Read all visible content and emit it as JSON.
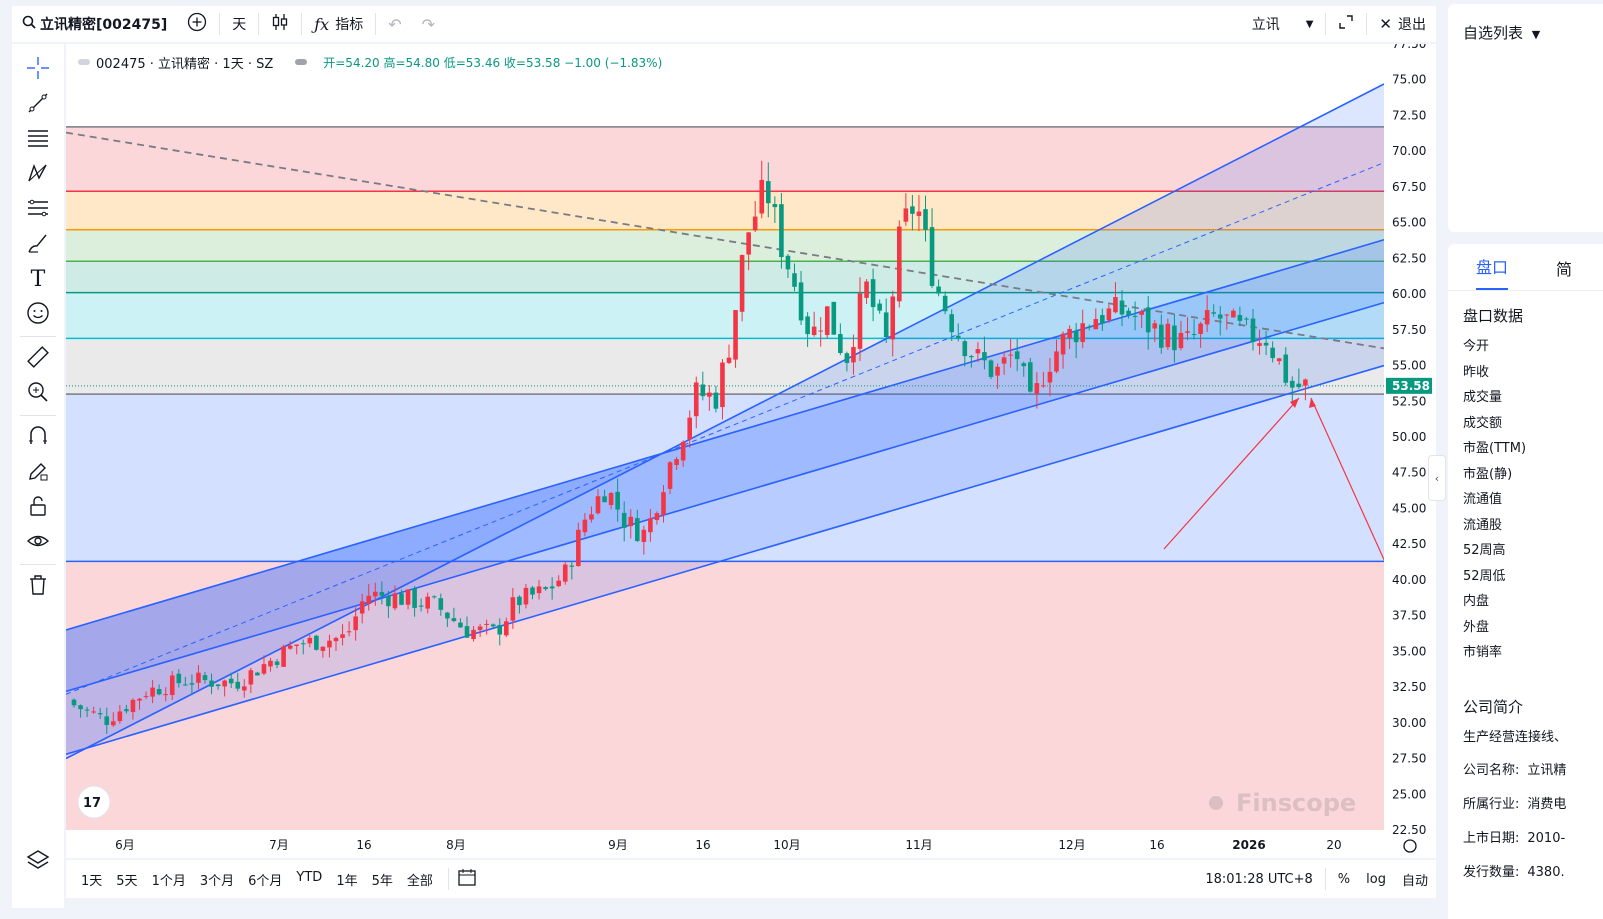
{
  "toolbar": {
    "symbol": "立讯精密[002475]",
    "interval": "天",
    "indicators": "指标",
    "watch_name": "立讯",
    "exit": "退出"
  },
  "legend": {
    "title": "002475 · 立讯精密 · 1天 · SZ",
    "ohlc": "开=54.20 高=54.80 低=53.46 收=53.58 −1.00 (−1.83%)"
  },
  "chart": {
    "watermark": "Finscope",
    "price_tag": "53.58",
    "y_ticks": [
      "77.50",
      "75.00",
      "72.50",
      "70.00",
      "67.50",
      "65.00",
      "62.50",
      "60.00",
      "57.50",
      "55.00",
      "52.50",
      "50.00",
      "47.50",
      "45.00",
      "42.50",
      "40.00",
      "37.50",
      "35.00",
      "32.50",
      "30.00",
      "27.50",
      "25.00",
      "22.50"
    ],
    "x_ticks": [
      "6月",
      "7月",
      "16",
      "8月",
      "9月",
      "16",
      "10月",
      "11月",
      "12月",
      "16",
      "2026",
      "20"
    ],
    "colors": {
      "up": "#f23645",
      "down": "#089981",
      "channel": "#2962ff"
    }
  },
  "chart_data": {
    "type": "candlestick",
    "ylim": [
      22.5,
      77.5
    ],
    "last_close": 53.58,
    "horizontal_levels": [
      71.7,
      67.2,
      64.5,
      62.3,
      60.1,
      56.9,
      53.0,
      41.3
    ],
    "channel_lines": [
      {
        "start": 27.5,
        "end": 74.7
      },
      {
        "start": 36.5,
        "end": 63.8
      },
      {
        "start": 32.2,
        "end": 59.4
      },
      {
        "start": 27.8,
        "end": 55.0
      }
    ]
  },
  "bottom": {
    "ranges": [
      "1天",
      "5天",
      "1个月",
      "3个月",
      "6个月",
      "YTD",
      "1年",
      "5年",
      "全部"
    ],
    "time": "18:01:28 UTC+8",
    "percent": "%",
    "log": "log",
    "auto": "自动"
  },
  "sidebar": {
    "watchlist": "自选列表",
    "tabs": [
      "盘口",
      "简"
    ],
    "quote_title": "盘口数据",
    "fields": [
      "今开",
      "昨收",
      "成交量",
      "成交额",
      "市盈(TTM)",
      "市盈(静)",
      "流通值",
      "流通股",
      "52周高",
      "52周低",
      "内盘",
      "外盘",
      "市销率"
    ],
    "company_title": "公司简介",
    "company_desc": "生产经营连接线、",
    "company_rows": [
      {
        "label": "公司名称:",
        "value": "立讯精"
      },
      {
        "label": "所属行业:",
        "value": "消费电"
      },
      {
        "label": "上市日期:",
        "value": "2010-"
      },
      {
        "label": "发行数量:",
        "value": "4380."
      }
    ]
  }
}
